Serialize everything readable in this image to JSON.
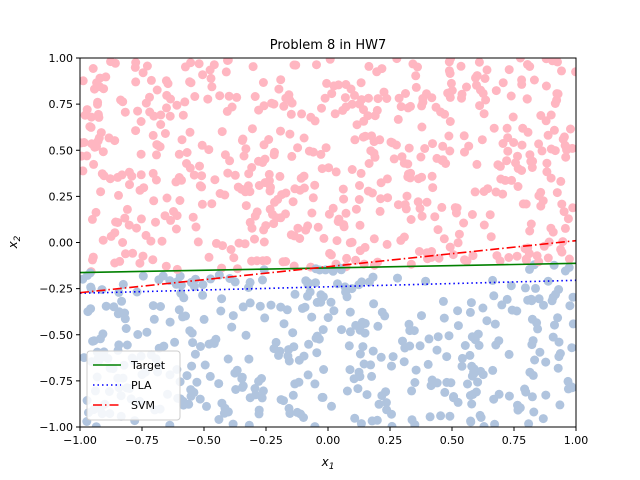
{
  "chart_data": {
    "type": "scatter",
    "title": "Problem 8 in HW7",
    "xlabel": "x",
    "xlabel_sub": "1",
    "ylabel": "x",
    "ylabel_sub": "2",
    "xlim": [
      -1.0,
      1.0
    ],
    "ylim": [
      -1.0,
      1.0
    ],
    "xticks": [
      -1.0,
      -0.75,
      -0.5,
      -0.25,
      0.0,
      0.25,
      0.5,
      0.75,
      1.0
    ],
    "xtick_labels": [
      "−1.00",
      "−0.75",
      "−0.50",
      "−0.25",
      "0.00",
      "0.25",
      "0.50",
      "0.75",
      "1.00"
    ],
    "yticks": [
      -1.0,
      -0.75,
      -0.5,
      -0.25,
      0.0,
      0.25,
      0.5,
      0.75,
      1.0
    ],
    "ytick_labels": [
      "−1.00",
      "−0.75",
      "−0.50",
      "−0.25",
      "0.00",
      "0.25",
      "0.50",
      "0.75",
      "1.00"
    ],
    "grid": false,
    "legend_position": "lower-left",
    "points": {
      "count": 1000,
      "x_range": [
        -1.0,
        1.0
      ],
      "y_range": [
        -1.0,
        1.0
      ],
      "above_color": "#ffb6c1",
      "below_color": "#b0c4de",
      "classified_by": "Target"
    },
    "lines": [
      {
        "name": "Target",
        "x": [
          -1.0,
          1.0
        ],
        "y": [
          -0.163,
          -0.113
        ],
        "color": "#008000",
        "style": "solid"
      },
      {
        "name": "PLA",
        "x": [
          -1.0,
          1.0
        ],
        "y": [
          -0.275,
          -0.205
        ],
        "color": "#0000ff",
        "style": "dotted"
      },
      {
        "name": "SVM",
        "x": [
          -1.0,
          1.0
        ],
        "y": [
          -0.272,
          0.01
        ],
        "color": "#ff0000",
        "style": "dashdot"
      }
    ]
  }
}
